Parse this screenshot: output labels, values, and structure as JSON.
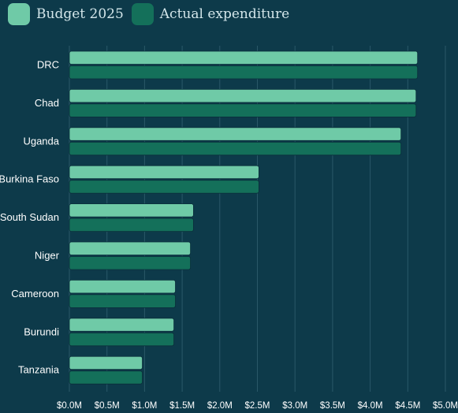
{
  "legend": {
    "items": [
      {
        "label": "Budget 2025",
        "color": "#6fcaa7"
      },
      {
        "label": "Actual expenditure",
        "color": "#14705a"
      }
    ]
  },
  "chart_data": {
    "type": "bar",
    "orientation": "horizontal",
    "categories": [
      "DRC",
      "Chad",
      "Uganda",
      "Burkina Faso",
      "South Sudan",
      "Niger",
      "Cameroon",
      "Burundi",
      "Tanzania"
    ],
    "series": [
      {
        "name": "Budget 2025",
        "color": "#6fcaa7",
        "values": [
          4.63,
          4.61,
          4.41,
          2.52,
          1.65,
          1.61,
          1.41,
          1.39,
          0.97
        ]
      },
      {
        "name": "Actual expenditure",
        "color": "#14705a",
        "values": [
          4.63,
          4.61,
          4.41,
          2.52,
          1.65,
          1.61,
          1.41,
          1.39,
          0.97
        ]
      }
    ],
    "xlim": [
      0,
      5
    ],
    "xticks": [
      0,
      0.5,
      1,
      1.5,
      2,
      2.5,
      3,
      3.5,
      4,
      4.5,
      5
    ],
    "xtick_labels": [
      "$0.0M",
      "$0.5M",
      "$1.0M",
      "$1.5M",
      "$2.0M",
      "$2.5M",
      "$3.0M",
      "$3.5M",
      "$4.0M",
      "$4.5M",
      "$5.0M"
    ],
    "grid": true,
    "legend_position": "top-left"
  }
}
